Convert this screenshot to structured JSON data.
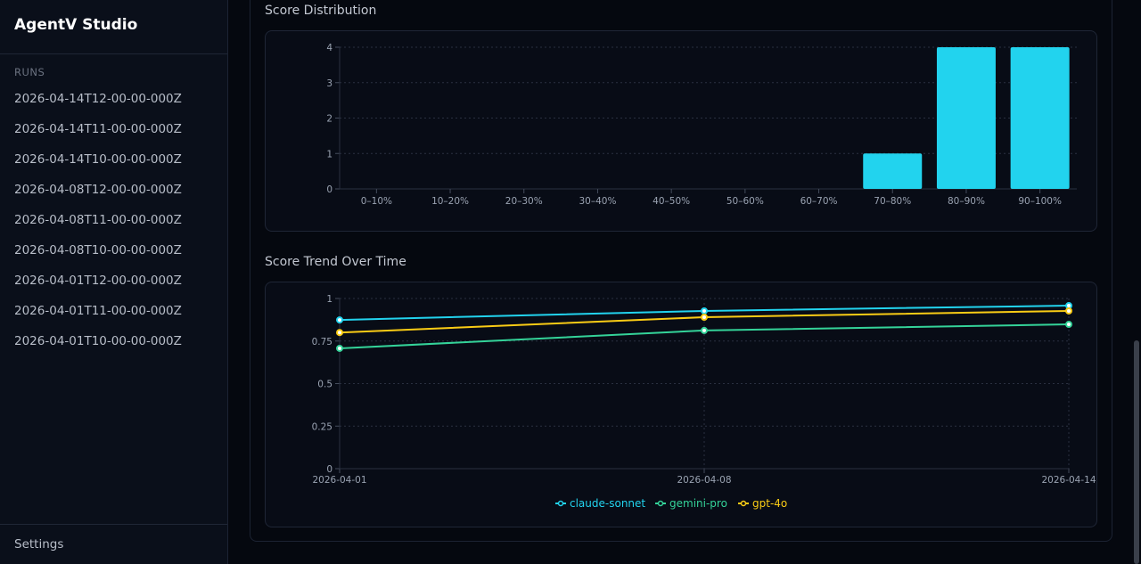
{
  "app": {
    "title": "AgentV Studio"
  },
  "sidebar": {
    "section_label": "RUNS",
    "runs": [
      "2026-04-14T12-00-00-000Z",
      "2026-04-14T11-00-00-000Z",
      "2026-04-14T10-00-00-000Z",
      "2026-04-08T12-00-00-000Z",
      "2026-04-08T11-00-00-000Z",
      "2026-04-08T10-00-00-000Z",
      "2026-04-01T12-00-00-000Z",
      "2026-04-01T11-00-00-000Z",
      "2026-04-01T10-00-00-000Z"
    ],
    "settings_label": "Settings"
  },
  "chart_data": [
    {
      "type": "bar",
      "title": "Score Distribution",
      "categories": [
        "0–10%",
        "10–20%",
        "20–30%",
        "30–40%",
        "40–50%",
        "50–60%",
        "60–70%",
        "70–80%",
        "80–90%",
        "90–100%"
      ],
      "values": [
        0,
        0,
        0,
        0,
        0,
        0,
        0,
        1,
        4,
        4
      ],
      "ylim": [
        0,
        4
      ],
      "yticks": [
        0,
        1,
        2,
        3,
        4
      ],
      "grid": true,
      "color": "#22d3ee"
    },
    {
      "type": "line",
      "title": "Score Trend Over Time",
      "x": [
        "2026-04-01",
        "2026-04-08",
        "2026-04-14"
      ],
      "ylim": [
        0,
        1
      ],
      "yticks": [
        "0",
        "0.25",
        "0.5",
        "0.75",
        "1"
      ],
      "grid": true,
      "legend": "bottom",
      "series": [
        {
          "name": "claude-sonnet",
          "color": "#22d3ee",
          "values": [
            0.874,
            0.927,
            0.958
          ]
        },
        {
          "name": "gemini-pro",
          "color": "#34d399",
          "values": [
            0.707,
            0.812,
            0.848
          ]
        },
        {
          "name": "gpt-4o",
          "color": "#facc15",
          "values": [
            0.8,
            0.89,
            0.927
          ]
        }
      ]
    }
  ]
}
